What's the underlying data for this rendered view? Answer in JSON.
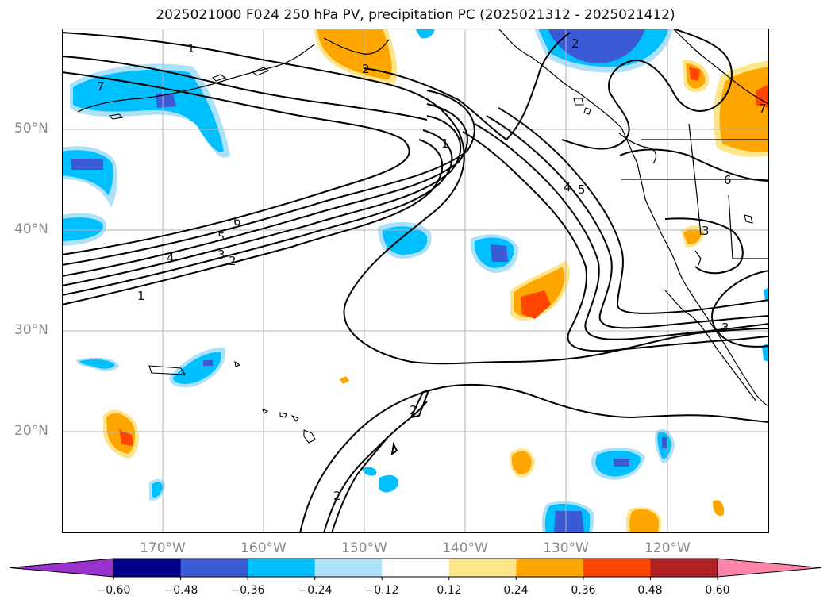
{
  "title": "2025021000 F024 250 hPa PV, precipitation PC (2025021312 - 2025021412)",
  "map": {
    "lat_labels": [
      {
        "label": "50°N",
        "lat": 50
      },
      {
        "label": "40°N",
        "lat": 40
      },
      {
        "label": "30°N",
        "lat": 30
      },
      {
        "label": "20°N",
        "lat": 20
      }
    ],
    "lon_labels": [
      {
        "label": "170°W",
        "lon": -170
      },
      {
        "label": "160°W",
        "lon": -160
      },
      {
        "label": "150°W",
        "lon": -150
      },
      {
        "label": "140°W",
        "lon": -140
      },
      {
        "label": "130°W",
        "lon": -130
      },
      {
        "label": "120°W",
        "lon": -120
      }
    ],
    "extent": {
      "lon_min": -180,
      "lon_max": -110,
      "lat_min": 10,
      "lat_max": 60
    },
    "grid": true,
    "contour_labels": [
      "1",
      "2",
      "3",
      "4",
      "5",
      "6",
      "7"
    ]
  },
  "colorbar": {
    "tick_labels": [
      "−0.60",
      "−0.48",
      "−0.36",
      "−0.24",
      "−0.12",
      "0.12",
      "0.24",
      "0.36",
      "0.48",
      "0.60"
    ],
    "colors": [
      "#9932CC",
      "#00008B",
      "#3B5BD6",
      "#00BFFF",
      "#ADE1FA",
      "#FFFFFF",
      "#FDE68A",
      "#FFA500",
      "#FF4500",
      "#B22222",
      "#FF85A8"
    ],
    "extend": "both"
  }
}
